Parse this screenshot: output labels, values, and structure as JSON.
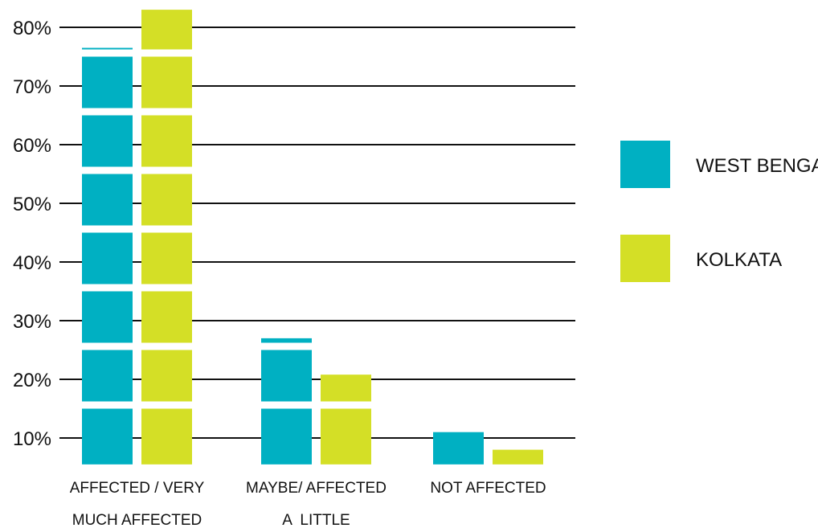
{
  "chart_data": {
    "type": "bar",
    "categories": [
      [
        "AFFECTED / VERY",
        "MUCH AFFECTED"
      ],
      [
        "MAYBE/ AFFECTED",
        "A  LITTLE"
      ],
      [
        "NOT AFFECTED"
      ]
    ],
    "series": [
      {
        "name": "WEST BENGAL",
        "color": "#00b0c2",
        "values": [
          76.5,
          27,
          11
        ]
      },
      {
        "name": "KOLKATA",
        "color": "#d4df26",
        "values": [
          83,
          20.8,
          8
        ]
      }
    ],
    "yticks": [
      "10%",
      "20%",
      "30%",
      "40%",
      "50%",
      "60%",
      "70%",
      "80%"
    ],
    "ytick_values": [
      10,
      20,
      30,
      40,
      50,
      60,
      70,
      80
    ],
    "ylim": [
      5.5,
      84
    ],
    "grid": true,
    "legend": "right",
    "bar_style": "segmented blocks per 10%"
  }
}
